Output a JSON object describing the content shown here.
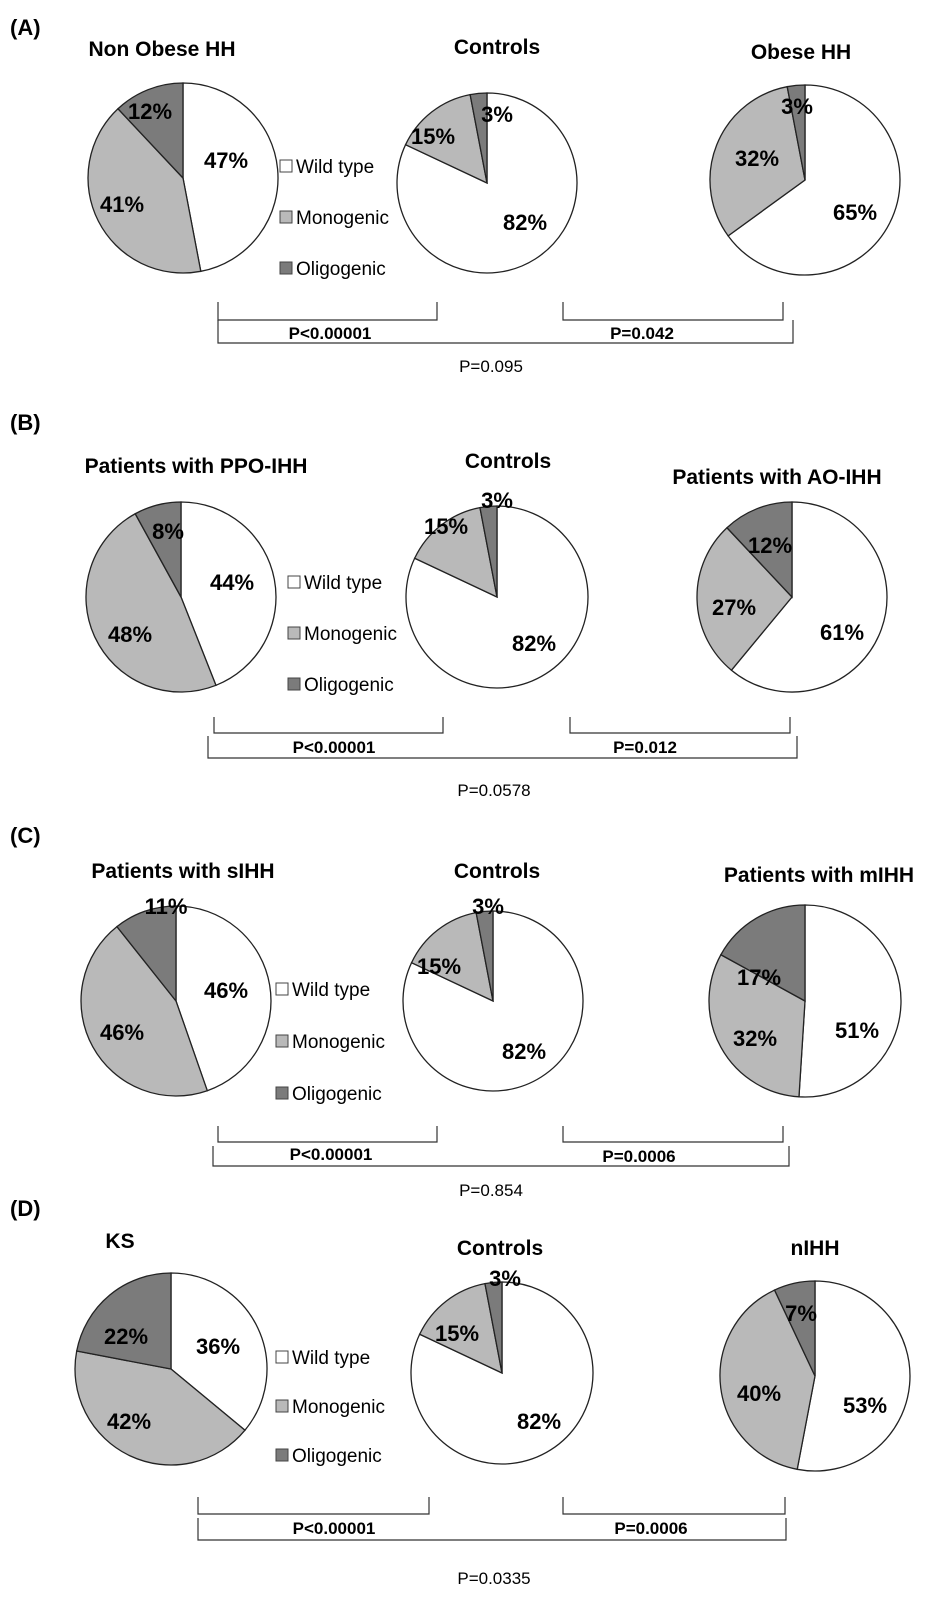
{
  "legend": [
    {
      "label": "Wild type",
      "color": "#ffffff"
    },
    {
      "label": "Monogenic",
      "color": "#b9b9b9"
    },
    {
      "label": "Oligogenic",
      "color": "#7b7b7b"
    }
  ],
  "chart_data": [
    {
      "type": "pie",
      "panel": "(A)",
      "pies": [
        {
          "title": "Non Obese HH",
          "slices": [
            {
              "label": "Wild type",
              "value": 47
            },
            {
              "label": "Monogenic",
              "value": 41
            },
            {
              "label": "Oligogenic",
              "value": 12
            }
          ]
        },
        {
          "title": "Controls",
          "slices": [
            {
              "label": "Wild type",
              "value": 82
            },
            {
              "label": "Monogenic",
              "value": 15
            },
            {
              "label": "Oligogenic",
              "value": 3
            }
          ]
        },
        {
          "title": "Obese HH",
          "slices": [
            {
              "label": "Wild type",
              "value": 65
            },
            {
              "label": "Monogenic",
              "value": 32
            },
            {
              "label": "Oligogenic",
              "value": 3
            }
          ]
        }
      ],
      "comparisons": {
        "left": "P<0.00001",
        "right": "P=0.042",
        "overall": "P=0.095"
      }
    },
    {
      "type": "pie",
      "panel": "(B)",
      "pies": [
        {
          "title": "Patients with PPO-IHH",
          "slices": [
            {
              "label": "Wild type",
              "value": 44
            },
            {
              "label": "Monogenic",
              "value": 48
            },
            {
              "label": "Oligogenic",
              "value": 8
            }
          ]
        },
        {
          "title": "Controls",
          "slices": [
            {
              "label": "Wild type",
              "value": 82
            },
            {
              "label": "Monogenic",
              "value": 15
            },
            {
              "label": "Oligogenic",
              "value": 3
            }
          ]
        },
        {
          "title": "Patients with AO-IHH",
          "slices": [
            {
              "label": "Wild type",
              "value": 61
            },
            {
              "label": "Monogenic",
              "value": 27
            },
            {
              "label": "Oligogenic",
              "value": 12
            }
          ]
        }
      ],
      "comparisons": {
        "left": "P<0.00001",
        "right": "P=0.012",
        "overall": "P=0.0578"
      }
    },
    {
      "type": "pie",
      "panel": "(C)",
      "pies": [
        {
          "title": "Patients with sIHH",
          "slices": [
            {
              "label": "Wild type",
              "value": 46
            },
            {
              "label": "Monogenic",
              "value": 46
            },
            {
              "label": "Oligogenic",
              "value": 11
            }
          ]
        },
        {
          "title": "Controls",
          "slices": [
            {
              "label": "Wild type",
              "value": 82
            },
            {
              "label": "Monogenic",
              "value": 15
            },
            {
              "label": "Oligogenic",
              "value": 3
            }
          ]
        },
        {
          "title": "Patients with mIHH",
          "slices": [
            {
              "label": "Wild type",
              "value": 51
            },
            {
              "label": "Monogenic",
              "value": 32
            },
            {
              "label": "Oligogenic",
              "value": 17
            }
          ]
        }
      ],
      "comparisons": {
        "left": "P<0.00001",
        "right": "P=0.0006",
        "overall": "P=0.854"
      }
    },
    {
      "type": "pie",
      "panel": "(D)",
      "pies": [
        {
          "title": "KS",
          "slices": [
            {
              "label": "Wild type",
              "value": 36
            },
            {
              "label": "Monogenic",
              "value": 42
            },
            {
              "label": "Oligogenic",
              "value": 22
            }
          ]
        },
        {
          "title": "Controls",
          "slices": [
            {
              "label": "Wild type",
              "value": 82
            },
            {
              "label": "Monogenic",
              "value": 15
            },
            {
              "label": "Oligogenic",
              "value": 3
            }
          ]
        },
        {
          "title": "nIHH",
          "slices": [
            {
              "label": "Wild type",
              "value": 53
            },
            {
              "label": "Monogenic",
              "value": 40
            },
            {
              "label": "Oligogenic",
              "value": 7
            }
          ]
        }
      ],
      "comparisons": {
        "left": "P<0.00001",
        "right": "P=0.0006",
        "overall": "P=0.0335"
      }
    }
  ]
}
